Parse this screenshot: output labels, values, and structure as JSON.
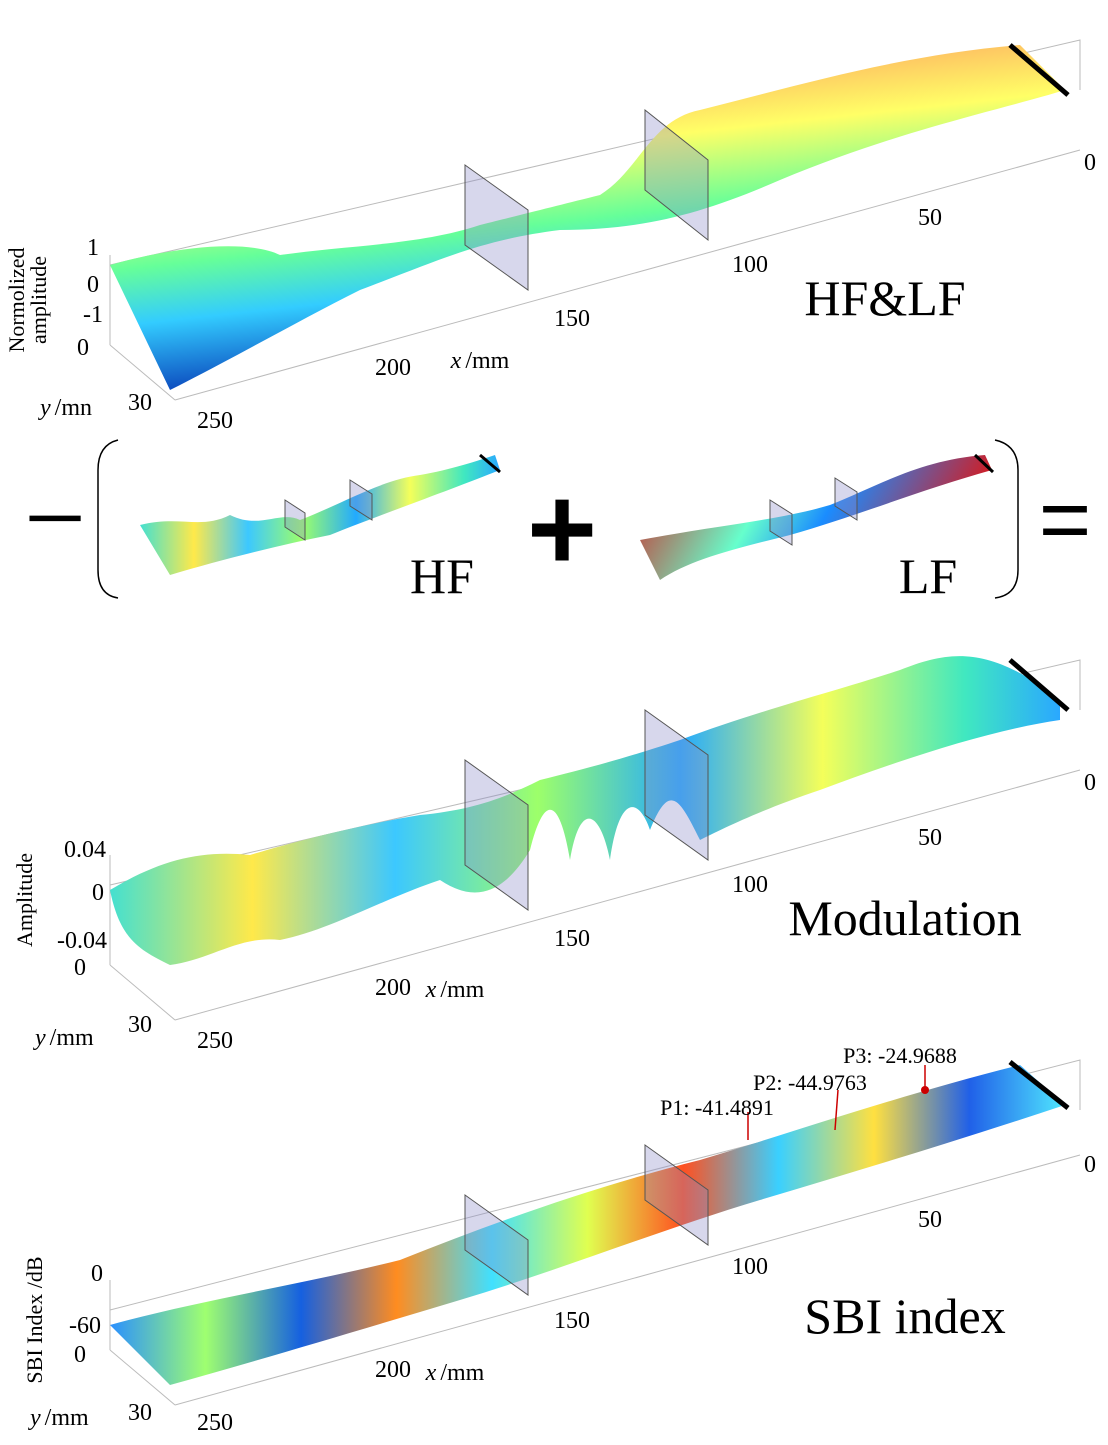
{
  "panels": [
    {
      "title": "HF&LF",
      "x_label": {
        "var": "x",
        "unit": "/mm"
      },
      "y_label": {
        "var": "y",
        "unit": "/mn"
      },
      "z_label": [
        "Normolized",
        "amplitude"
      ],
      "x_ticks": [
        "0",
        "50",
        "100",
        "150",
        "200",
        "250"
      ],
      "y_ticks": [
        "0",
        "30"
      ],
      "z_ticks": [
        "1",
        "0",
        "-1"
      ]
    },
    {
      "title": "Modulation",
      "x_label": {
        "var": "x",
        "unit": "/mm"
      },
      "y_label": {
        "var": "y",
        "unit": "/mm"
      },
      "z_label": [
        "Amplitude"
      ],
      "x_ticks": [
        "0",
        "50",
        "100",
        "150",
        "200",
        "250"
      ],
      "y_ticks": [
        "0",
        "30"
      ],
      "z_ticks": [
        "0.04",
        "0",
        "-0.04"
      ]
    },
    {
      "title": "SBI index",
      "x_label": {
        "var": "x",
        "unit": "/mm"
      },
      "y_label": {
        "var": "y",
        "unit": "/mm"
      },
      "z_label": [
        "SBI Index /dB"
      ],
      "x_ticks": [
        "0",
        "50",
        "100",
        "150",
        "200",
        "250"
      ],
      "y_ticks": [
        "0",
        "30"
      ],
      "z_ticks": [
        "0",
        "-60"
      ]
    }
  ],
  "equation": {
    "minus": "−",
    "plus": "+",
    "equals": "=",
    "hf_label": "HF",
    "lf_label": "LF"
  },
  "annotations": [
    "P1: -41.4891",
    "P2: -44.9763",
    "P3: -24.9688"
  ]
}
